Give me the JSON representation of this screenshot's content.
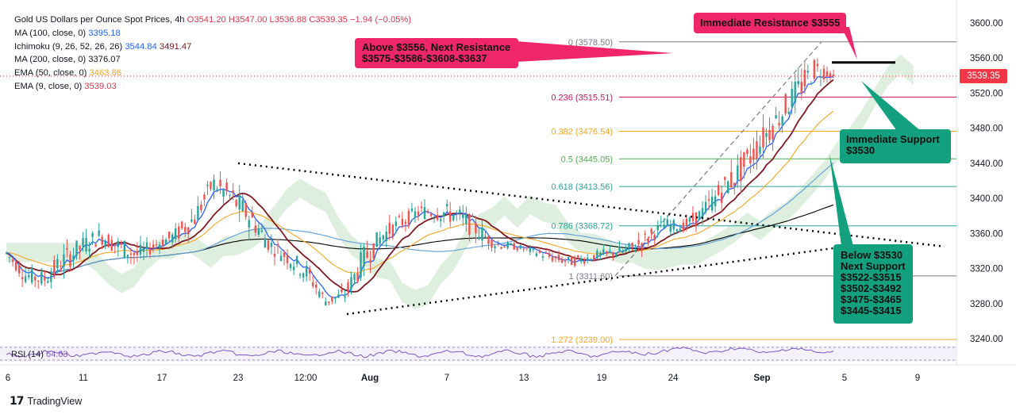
{
  "header": {
    "title": "Gold US Dollars per Ounce Spot Prices, 4h",
    "open": "O3541.20",
    "high": "H3547.00",
    "low": "L3536.88",
    "close": "C3539.35",
    "change": "−1.94 (−0.05%)"
  },
  "legend": [
    {
      "label": "MA (100, close, 0)",
      "values": [
        "3395.18"
      ],
      "color": "#2962ff"
    },
    {
      "label": "Ichimoku (9, 26, 52, 26, 26)",
      "values": [
        "3544.84",
        "3491.47"
      ],
      "color": "#2962ff",
      "color2": "#801922"
    },
    {
      "label": "MA (200, close, 0)",
      "values": [
        "3376.07"
      ],
      "color": "#131722"
    },
    {
      "label": "EMA (50, close, 0)",
      "values": [
        "3463.86"
      ],
      "color": "#f5a623"
    },
    {
      "label": "EMA (9, close, 0)",
      "values": [
        "3539.03"
      ],
      "color": "#e0344b"
    }
  ],
  "callouts": {
    "resistance_immediate": "Immediate Resistance $3555",
    "resistance_next_1": "Above $3556, Next Resistance",
    "resistance_next_2": "$3575-$3586-$3608-$3637",
    "support_immediate_1": "Immediate Support",
    "support_immediate_2": "$3530",
    "support_next": [
      "Below $3530",
      "Next Support",
      "$3522-$3515",
      "$3502-$3492",
      "$3475-$3465",
      "$3445-$3415"
    ]
  },
  "current_price_label": "3539.35",
  "rsi_label": "RSI (14)",
  "rsi_value": "64.63",
  "branding": "TradingView",
  "colors": {
    "up": "#26a69a",
    "down": "#ef5350",
    "pink": "#f0266a",
    "green": "#12a07e",
    "ma100": "#5b9cd6",
    "ma200": "#000000",
    "ema50": "#f5a623",
    "ema9": "#2962ff",
    "kijun": "#801922",
    "fib_red": "#c2185b",
    "fib_orange": "#f5a623",
    "fib_green": "#4caf50",
    "fib_teal": "#26a69a",
    "fib_gray": "#787b86",
    "cloud_green": "#d6ead7",
    "cloud_red": "#f9d8d8"
  },
  "chart_data": {
    "type": "candlestick",
    "instrument": "XAUUSD",
    "timeframe": "4h",
    "ylim": [
      3220,
      3610
    ],
    "y_ticks": [
      "3600.00",
      "3560.00",
      "3520.00",
      "3480.00",
      "3440.00",
      "3400.00",
      "3360.00",
      "3320.00",
      "3280.00",
      "3240.00"
    ],
    "x_ticks": [
      "6",
      "11",
      "17",
      "23",
      "12:00",
      "Aug",
      "7",
      "13",
      "19",
      "24",
      "Sep",
      "5",
      "9"
    ],
    "price_path": [
      [
        3345,
        3330
      ],
      [
        3325,
        3300
      ],
      [
        3320,
        3295
      ],
      [
        3345,
        3310
      ],
      [
        3360,
        3330
      ],
      [
        3370,
        3345
      ],
      [
        3360,
        3330
      ],
      [
        3350,
        3320
      ],
      [
        3355,
        3340
      ],
      [
        3370,
        3345
      ],
      [
        3395,
        3360
      ],
      [
        3430,
        3405
      ],
      [
        3420,
        3380
      ],
      [
        3395,
        3360
      ],
      [
        3360,
        3335
      ],
      [
        3345,
        3320
      ],
      [
        3330,
        3300
      ],
      [
        3290,
        3275
      ],
      [
        3300,
        3280
      ],
      [
        3350,
        3310
      ],
      [
        3370,
        3345
      ],
      [
        3385,
        3360
      ],
      [
        3395,
        3375
      ],
      [
        3400,
        3370
      ],
      [
        3395,
        3365
      ],
      [
        3380,
        3350
      ],
      [
        3355,
        3340
      ],
      [
        3350,
        3340
      ],
      [
        3345,
        3335
      ],
      [
        3340,
        3325
      ],
      [
        3335,
        3320
      ],
      [
        3340,
        3325
      ],
      [
        3345,
        3330
      ],
      [
        3350,
        3330
      ],
      [
        3365,
        3340
      ],
      [
        3380,
        3360
      ],
      [
        3375,
        3360
      ],
      [
        3395,
        3370
      ],
      [
        3425,
        3390
      ],
      [
        3450,
        3410
      ],
      [
        3480,
        3440
      ],
      [
        3510,
        3470
      ],
      [
        3540,
        3500
      ],
      [
        3565,
        3530
      ],
      [
        3547,
        3536.88
      ]
    ],
    "indicator_end_values": {
      "MA 100": 3395.18,
      "Ichimoku conversion": 3544.84,
      "Ichimoku base": 3491.47,
      "MA 200": 3376.07,
      "EMA 50": 3463.86,
      "EMA 9": 3539.03
    },
    "fibonacci": [
      {
        "level": "0",
        "price": 3578.5,
        "label": "0 (3578.50)"
      },
      {
        "level": "0.236",
        "price": 3515.51,
        "label": "0.236 (3515.51)"
      },
      {
        "level": "0.382",
        "price": 3476.54,
        "label": "0.382 (3476.54)"
      },
      {
        "level": "0.5",
        "price": 3445.05,
        "label": "0.5 (3445.05)"
      },
      {
        "level": "0.618",
        "price": 3413.56,
        "label": "0.618 (3413.56)"
      },
      {
        "level": "0.786",
        "price": 3368.72,
        "label": "0.786 (3368.72)"
      },
      {
        "level": "1",
        "price": 3311.6,
        "label": "1 (3311.60)"
      },
      {
        "level": "1.272",
        "price": 3239.0,
        "label": "1.272 (3239.00)"
      }
    ],
    "resistance_level": 3555,
    "current_price": 3539.35,
    "rsi": 64.63
  }
}
